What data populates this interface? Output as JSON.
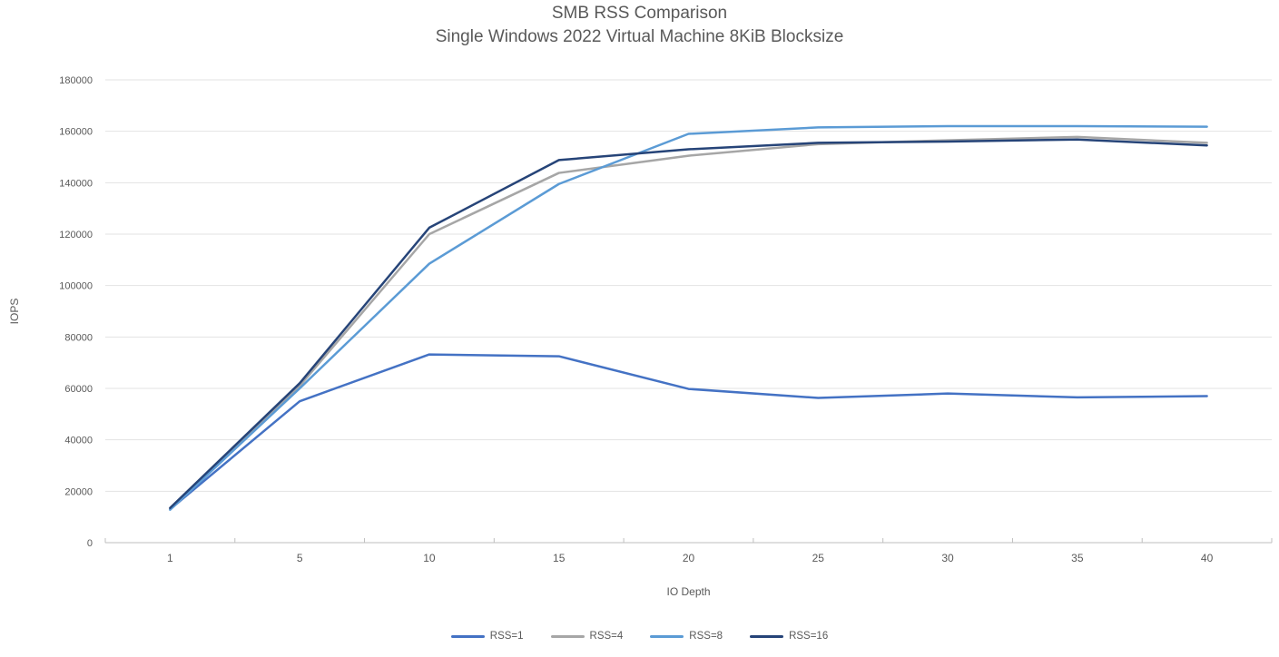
{
  "chart_data": {
    "type": "line",
    "title": "SMB RSS Comparison",
    "subtitle": "Single Windows 2022 Virtual Machine 8KiB Blocksize",
    "xlabel": "IO Depth",
    "ylabel": "IOPS",
    "categories": [
      1,
      5,
      10,
      15,
      20,
      25,
      30,
      35,
      40
    ],
    "series": [
      {
        "name": "RSS=1",
        "color": "#4472C4",
        "values": [
          13000,
          55000,
          73200,
          72500,
          59800,
          56300,
          58000,
          56500,
          57000
        ]
      },
      {
        "name": "RSS=4",
        "color": "#A6A6A6",
        "values": [
          13200,
          61000,
          120000,
          143800,
          150500,
          155000,
          156500,
          157800,
          155500
        ]
      },
      {
        "name": "RSS=8",
        "color": "#5B9BD5",
        "values": [
          12800,
          60000,
          108500,
          139500,
          159000,
          161500,
          162000,
          162000,
          161800
        ]
      },
      {
        "name": "RSS=16",
        "color": "#264478",
        "values": [
          13500,
          62000,
          122500,
          148800,
          153000,
          155500,
          156000,
          156800,
          154500
        ]
      }
    ],
    "ylim": [
      0,
      180000
    ],
    "ytick_step": 20000,
    "ytick_labels": [
      "0",
      "20000",
      "40000",
      "60000",
      "80000",
      "100000",
      "120000",
      "140000",
      "160000",
      "180000"
    ],
    "grid": "horizontal-on",
    "legend_position": "bottom-center"
  },
  "styles": {
    "text_color": "#595959",
    "grid_color": "#E3E3E3",
    "axis_line_color": "#BFBFBF",
    "background": "#FFFFFF",
    "line_width": 2.5
  }
}
